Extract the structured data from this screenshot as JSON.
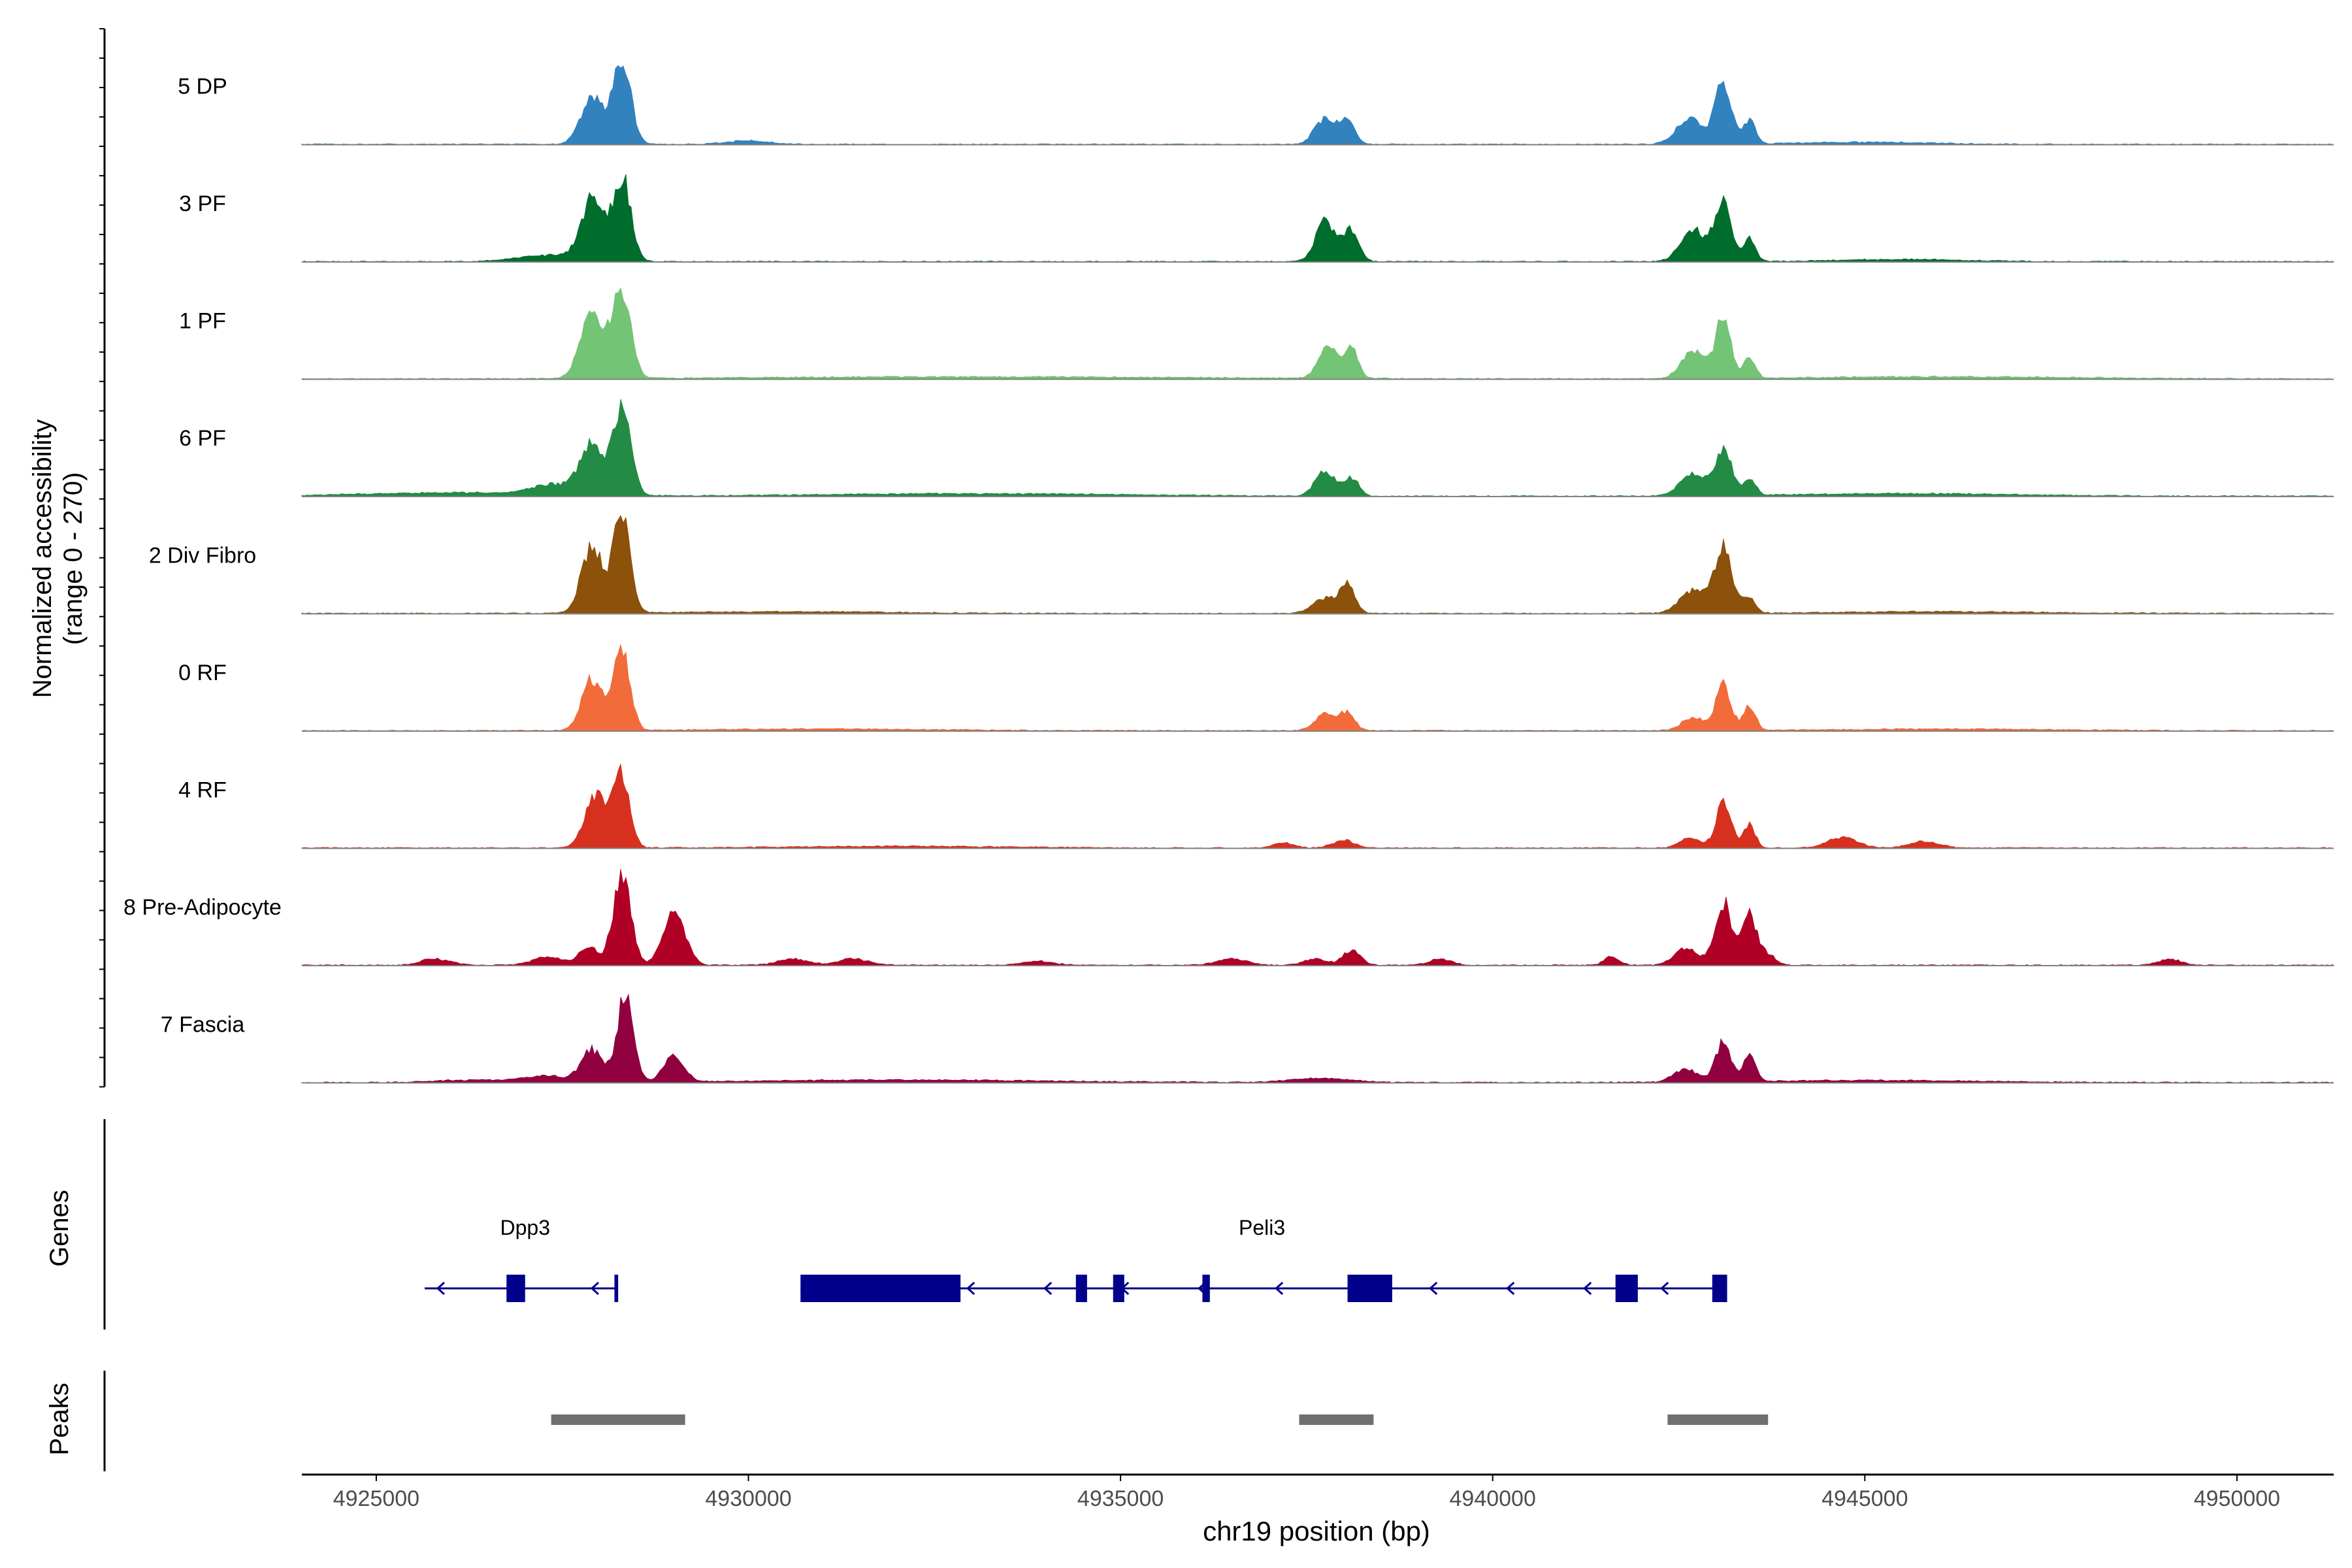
{
  "chart_data": {
    "type": "area",
    "title": "",
    "region": {
      "chromosome": "chr19",
      "start": 4924000,
      "end": 4951300
    },
    "coverage": {
      "ylabel_line1": "Normalized accessibility",
      "ylabel_line2": "(range 0 - 270)",
      "ylim": [
        0,
        270
      ],
      "tracks": [
        {
          "name": "5 DP",
          "color": "#3182BD",
          "peaks": [
            [
              4927900,
              150,
              110
            ],
            [
              4928300,
              120,
              200
            ],
            [
              4937750,
              140,
              60
            ],
            [
              4938050,
              100,
              55
            ],
            [
              4942650,
              180,
              60
            ],
            [
              4943100,
              110,
              140
            ],
            [
              4943450,
              80,
              55
            ],
            [
              4930000,
              300,
              8
            ],
            [
              4945000,
              900,
              5
            ]
          ]
        },
        {
          "name": "3 PF",
          "color": "#006D2C",
          "peaks": [
            [
              4927900,
              150,
              140
            ],
            [
              4928300,
              120,
              200
            ],
            [
              4927300,
              400,
              15
            ],
            [
              4937750,
              130,
              100
            ],
            [
              4938100,
              100,
              75
            ],
            [
              4942700,
              170,
              75
            ],
            [
              4943100,
              110,
              145
            ],
            [
              4943450,
              80,
              55
            ],
            [
              4945500,
              900,
              5
            ]
          ]
        },
        {
          "name": "1 PF",
          "color": "#74C476",
          "peaks": [
            [
              4927900,
              150,
              170
            ],
            [
              4928300,
              120,
              210
            ],
            [
              4937800,
              130,
              80
            ],
            [
              4938100,
              90,
              70
            ],
            [
              4942700,
              160,
              65
            ],
            [
              4943100,
              100,
              145
            ],
            [
              4943450,
              80,
              45
            ],
            [
              4933000,
              3000,
              5
            ],
            [
              4946000,
              2000,
              5
            ]
          ]
        },
        {
          "name": "6 PF",
          "color": "#238B45",
          "peaks": [
            [
              4927900,
              150,
              120
            ],
            [
              4928300,
              120,
              200
            ],
            [
              4927400,
              300,
              25
            ],
            [
              4937750,
              130,
              60
            ],
            [
              4938100,
              100,
              45
            ],
            [
              4942700,
              170,
              55
            ],
            [
              4943100,
              110,
              110
            ],
            [
              4943450,
              80,
              40
            ],
            [
              4926000,
              1200,
              8
            ],
            [
              4933000,
              2000,
              6
            ],
            [
              4945500,
              1500,
              6
            ]
          ]
        },
        {
          "name": "2 Div Fibro",
          "color": "#8C510A",
          "peaks": [
            [
              4927900,
              140,
              160
            ],
            [
              4928300,
              110,
              245
            ],
            [
              4937750,
              160,
              35
            ],
            [
              4938050,
              100,
              65
            ],
            [
              4942700,
              180,
              55
            ],
            [
              4943100,
              120,
              150
            ],
            [
              4943450,
              80,
              35
            ],
            [
              4930500,
              1500,
              4
            ],
            [
              4946000,
              1500,
              4
            ]
          ]
        },
        {
          "name": "0 RF",
          "color": "#F16C3A",
          "peaks": [
            [
              4927900,
              140,
              120
            ],
            [
              4928300,
              110,
              190
            ],
            [
              4937750,
              140,
              40
            ],
            [
              4938050,
              100,
              40
            ],
            [
              4942700,
              160,
              30
            ],
            [
              4943100,
              100,
              110
            ],
            [
              4943450,
              80,
              60
            ],
            [
              4931000,
              1500,
              4
            ],
            [
              4946000,
              1500,
              4
            ]
          ]
        },
        {
          "name": "4 RF",
          "color": "#D7301F",
          "peaks": [
            [
              4927950,
              140,
              130
            ],
            [
              4928300,
              110,
              175
            ],
            [
              4937200,
              140,
              12
            ],
            [
              4938000,
              150,
              18
            ],
            [
              4942650,
              140,
              25
            ],
            [
              4943100,
              100,
              110
            ],
            [
              4943450,
              80,
              55
            ],
            [
              4944700,
              200,
              25
            ],
            [
              4945800,
              200,
              15
            ],
            [
              4932000,
              1500,
              4
            ]
          ]
        },
        {
          "name": "8 Pre-Adipocyte",
          "color": "#B10026",
          "peaks": [
            [
              4927850,
              120,
              45
            ],
            [
              4928300,
              120,
              210
            ],
            [
              4929000,
              150,
              120
            ],
            [
              4925800,
              200,
              15
            ],
            [
              4927300,
              200,
              20
            ],
            [
              4930600,
              200,
              15
            ],
            [
              4931400,
              200,
              15
            ],
            [
              4933900,
              200,
              10
            ],
            [
              4936500,
              200,
              15
            ],
            [
              4938100,
              120,
              35
            ],
            [
              4937600,
              150,
              15
            ],
            [
              4939300,
              150,
              15
            ],
            [
              4941600,
              100,
              20
            ],
            [
              4942600,
              160,
              40
            ],
            [
              4943100,
              110,
              150
            ],
            [
              4943450,
              100,
              120
            ],
            [
              4943700,
              100,
              25
            ],
            [
              4949100,
              150,
              15
            ]
          ]
        },
        {
          "name": "7 Fascia",
          "color": "#91003F",
          "peaks": [
            [
              4927900,
              140,
              75
            ],
            [
              4928350,
              110,
              210
            ],
            [
              4929000,
              130,
              65
            ],
            [
              4927300,
              300,
              15
            ],
            [
              4937700,
              400,
              10
            ],
            [
              4942600,
              160,
              30
            ],
            [
              4943100,
              100,
              95
            ],
            [
              4943450,
              80,
              70
            ],
            [
              4926300,
              500,
              6
            ],
            [
              4932000,
              2000,
              6
            ],
            [
              4945000,
              1500,
              5
            ]
          ]
        }
      ]
    },
    "genes": {
      "label": "Genes",
      "color": "#00008B",
      "strand": "-",
      "annotations": [
        {
          "name": "Dpp3",
          "label_pos": 4927000,
          "start": 4925650,
          "end": 4928250,
          "exons": [
            [
              4926750,
              4927000
            ],
            [
              4928200,
              4928250
            ]
          ]
        },
        {
          "name": "Peli3",
          "label_pos": 4936900,
          "start": 4930700,
          "end": 4943150,
          "exons": [
            [
              4930700,
              4932850
            ],
            [
              4934400,
              4934550
            ],
            [
              4934900,
              4935050
            ],
            [
              4936100,
              4936200
            ],
            [
              4938050,
              4938650
            ],
            [
              4941650,
              4941950
            ],
            [
              4942950,
              4943150
            ]
          ]
        }
      ]
    },
    "peaks": {
      "label": "Peaks",
      "color": "#707070",
      "regions": [
        [
          4927350,
          4929150
        ],
        [
          4937400,
          4938400
        ],
        [
          4942350,
          4943700
        ]
      ]
    },
    "x_axis": {
      "label": "chr19 position (bp)",
      "ticks": [
        4925000,
        4930000,
        4935000,
        4940000,
        4945000,
        4950000
      ],
      "tick_labels": [
        "4925000",
        "4930000",
        "4935000",
        "4940000",
        "4945000",
        "4950000"
      ]
    }
  }
}
